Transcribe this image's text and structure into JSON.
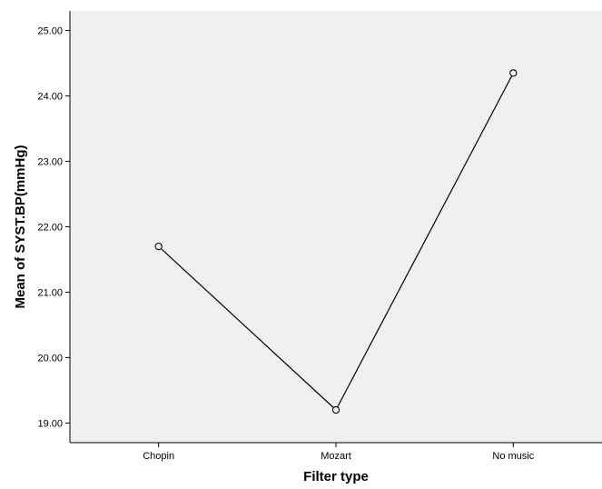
{
  "chart_data": {
    "type": "line",
    "title": "",
    "xlabel": "Filter type",
    "ylabel": "Mean of SYST.BP(mmHg)",
    "categories": [
      "Chopin",
      "Mozart",
      "No music"
    ],
    "series": [
      {
        "values": [
          21.7,
          19.2,
          24.35
        ]
      }
    ],
    "ylim": [
      18.7,
      25.3
    ],
    "yticks": [
      19.0,
      20.0,
      21.0,
      22.0,
      23.0,
      24.0,
      25.0
    ],
    "ytick_labels": [
      "19.00",
      "20.00",
      "21.00",
      "22.00",
      "23.00",
      "24.00",
      "25.00"
    ],
    "grid": false,
    "legend": "none",
    "marker": "open-circle",
    "colors": {
      "plot_background": "#f0f0f0",
      "line": "#000000",
      "axis": "#000000",
      "page_background": "#ffffff"
    }
  }
}
